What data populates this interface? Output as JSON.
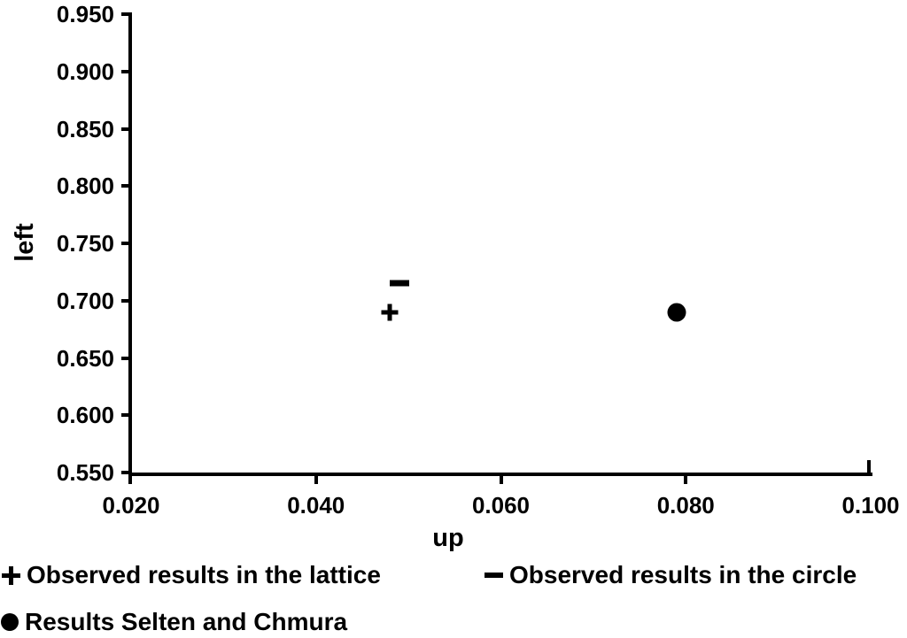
{
  "chart_data": {
    "type": "scatter",
    "title": "",
    "xlabel": "up",
    "ylabel": "left",
    "xlim": [
      0.02,
      0.1
    ],
    "ylim": [
      0.55,
      0.95
    ],
    "x_ticks": [
      "0.020",
      "0.040",
      "0.060",
      "0.080",
      "0.100"
    ],
    "y_ticks": [
      "0.950",
      "0.900",
      "0.850",
      "0.800",
      "0.750",
      "0.700",
      "0.650",
      "0.600",
      "0.550"
    ],
    "grid": false,
    "legend_position": "bottom",
    "series": [
      {
        "name": "Observed results in the lattice",
        "marker": "plus",
        "points": [
          {
            "x": 0.048,
            "y": 0.69
          }
        ]
      },
      {
        "name": "Observed results in the circle",
        "marker": "minus",
        "points": [
          {
            "x": 0.049,
            "y": 0.715
          }
        ]
      },
      {
        "name": "Results Selten and Chmura",
        "marker": "dot",
        "points": [
          {
            "x": 0.079,
            "y": 0.69
          }
        ]
      }
    ]
  },
  "colors": {
    "ink": "#000000",
    "background": "#ffffff"
  }
}
